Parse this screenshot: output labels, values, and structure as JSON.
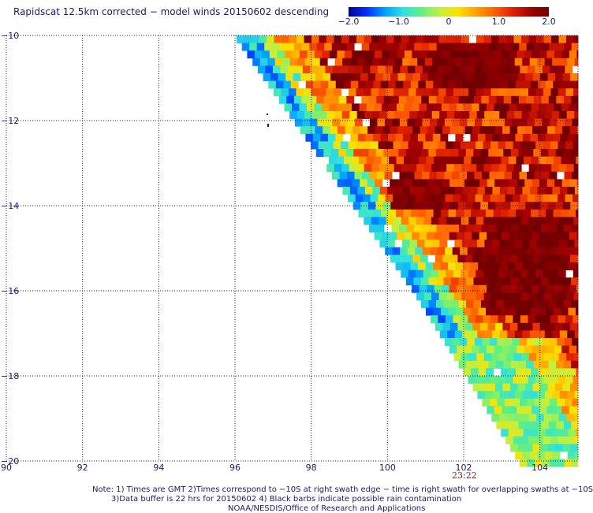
{
  "title": "Rapidscat 12.5km corrected − model winds 20150602 descending",
  "colorbar": {
    "ticks": [
      {
        "value": -2.0,
        "label": "−2.0"
      },
      {
        "value": -1.0,
        "label": "−1.0"
      },
      {
        "value": 0,
        "label": "0"
      },
      {
        "value": 1.0,
        "label": "1.0"
      },
      {
        "value": 2.0,
        "label": "2.0"
      }
    ],
    "colors": [
      "#00008b",
      "#0030ff",
      "#00a0ff",
      "#30e0e0",
      "#60f080",
      "#c0f040",
      "#ffe000",
      "#ffa000",
      "#ff6000",
      "#e02000",
      "#a00000",
      "#700000"
    ]
  },
  "axes": {
    "lon_min": 90,
    "lon_max": 105,
    "lat_min": -20,
    "lat_max": -10,
    "lon_ticks": [
      "90",
      "92",
      "94",
      "96",
      "98",
      "100",
      "102",
      "104"
    ],
    "lat_ticks": [
      "−10",
      "−12",
      "−14",
      "−16",
      "−18",
      "−20"
    ]
  },
  "time_label": "23:22",
  "notes": {
    "line1": "Note: 1) Times are GMT 2)Times correspond to −10S at right swath edge − time is right swath for overlapping swaths at −10S",
    "line2": "3)Data buffer is 22 hrs for 20150602 4) Black barbs indicate possible rain contamination",
    "line3": "NOAA/NESDIS/Office of Research and Applications"
  }
}
